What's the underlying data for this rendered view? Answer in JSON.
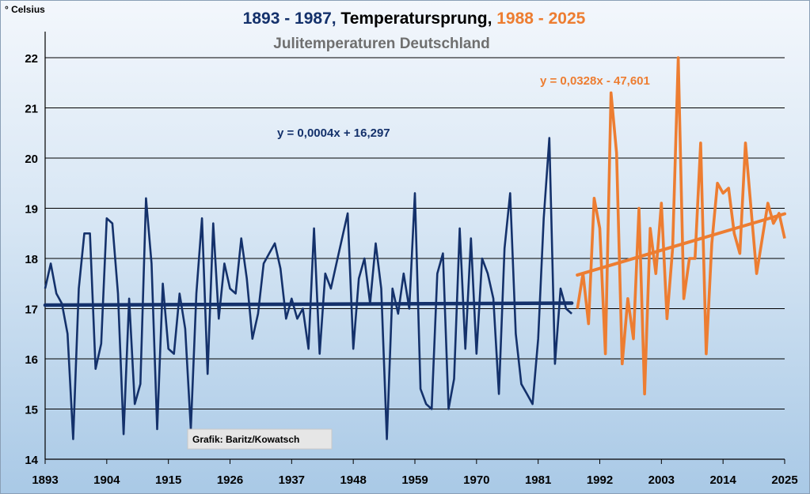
{
  "chart_data": {
    "type": "line",
    "title_parts": {
      "part1": "1893 - 1987,",
      "part2": " Temperatursprung, ",
      "part3": "1988 - 2025"
    },
    "subtitle": "Julitemperaturen Deutschland",
    "ylabel": "° Celsius",
    "ylim": [
      14,
      22
    ],
    "xlim": [
      1893,
      2025
    ],
    "yticks": [
      14,
      15,
      16,
      17,
      18,
      19,
      20,
      21,
      22
    ],
    "xticks": [
      1893,
      1904,
      1915,
      1926,
      1937,
      1948,
      1959,
      1970,
      1981,
      1992,
      2003,
      2014,
      2025
    ],
    "grid": true,
    "colors": {
      "series1": "#14316b",
      "series2": "#ed7d31",
      "subtitle": "#6f6f6f"
    },
    "credit": "Grafik: Baritz/Kowatsch",
    "series": [
      {
        "x_start": 1893,
        "values": [
          17.4,
          17.9,
          17.3,
          17.1,
          16.5,
          14.4,
          17.4,
          18.5,
          18.5,
          15.8,
          16.3,
          18.8,
          18.7,
          17.3,
          14.5,
          17.2,
          15.1,
          15.5,
          19.2,
          17.9,
          14.6,
          17.5,
          16.2,
          16.1,
          17.3,
          16.6,
          14.6,
          17.3,
          18.8,
          15.7,
          18.7,
          16.8,
          17.9,
          17.4,
          17.3,
          18.4,
          17.6,
          16.4,
          16.9,
          17.9,
          18.1,
          18.3,
          17.8,
          16.8,
          17.2,
          16.8,
          17.0,
          16.2,
          18.6,
          16.1,
          17.7,
          17.4,
          17.9,
          18.4,
          18.9,
          16.2,
          17.6,
          18.0,
          17.1,
          18.3,
          17.4,
          14.4,
          17.4,
          16.9,
          17.7,
          17.0,
          19.3,
          15.4,
          15.1,
          15.0,
          17.7,
          18.1,
          15.0,
          15.6,
          18.6,
          16.2,
          18.4,
          16.1,
          18.0,
          17.7,
          17.2,
          15.3,
          18.2,
          19.3,
          16.5,
          15.5,
          15.3,
          15.1,
          16.4,
          18.8,
          20.4,
          15.9,
          17.4,
          17.0,
          16.9
        ],
        "trend": {
          "label": "y = 0,0004x + 16,297",
          "start": 17.07,
          "end": 17.11
        }
      },
      {
        "x_start": 1988,
        "values": [
          17.0,
          17.7,
          16.7,
          19.2,
          18.6,
          16.1,
          21.3,
          20.1,
          15.9,
          17.2,
          16.4,
          19.0,
          15.3,
          18.6,
          17.7,
          19.1,
          16.8,
          18.2,
          22.0,
          17.2,
          18.0,
          18.0,
          20.3,
          16.1,
          18.3,
          19.5,
          19.3,
          19.4,
          18.5,
          18.1,
          20.3,
          19.0,
          17.7,
          18.4,
          19.1,
          18.7,
          18.9,
          18.4
        ],
        "trend": {
          "label": "y = 0,0328x - 47,601",
          "start": 17.67,
          "end": 18.89
        }
      }
    ]
  }
}
